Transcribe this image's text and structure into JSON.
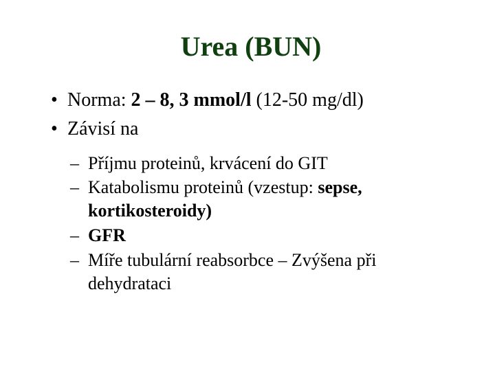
{
  "title": "Urea (BUN)",
  "title_color": "#104010",
  "text_color": "#000000",
  "background_color": "#ffffff",
  "title_fontsize": 40,
  "body_fontsize": 28,
  "sub_fontsize": 26,
  "font_family": "Times New Roman",
  "bullets": {
    "b1_prefix": "Norma: ",
    "b1_bold": "2 – 8, 3 mmol/l",
    "b1_suffix": "  (12-50 mg/dl)",
    "b2": "Závisí na"
  },
  "sub": {
    "s1": "Příjmu proteinů, krvácení do GIT",
    "s2_prefix": "Katabolismu proteinů (vzestup:  ",
    "s2_bold": "sepse, kortikosteroidy)",
    "s3": "GFR",
    "s4": "Míře tubulární reabsorbce – Zvýšena při dehydrataci"
  }
}
